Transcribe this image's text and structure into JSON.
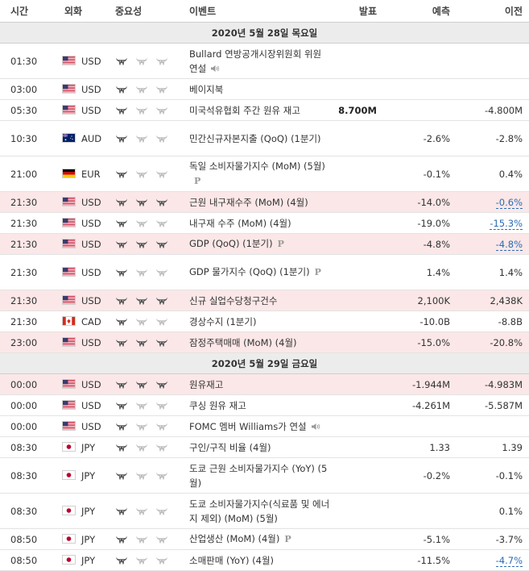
{
  "header": {
    "time": "시간",
    "currency": "외화",
    "importance": "중요성",
    "event": "이벤트",
    "actual": "발표",
    "forecast": "예측",
    "previous": "이전"
  },
  "dates": [
    "2020년 5월 28일 목요일",
    "2020년 5월 29일 금요일"
  ],
  "rows": [
    {
      "time": "01:30",
      "flag": "us",
      "currency": "USD",
      "importance": 1,
      "event": "Bullard 연방공개시장위원회 위원 연설",
      "speech": true,
      "tall": true,
      "highlight": false,
      "actual": "",
      "forecast": "",
      "previous": ""
    },
    {
      "time": "03:00",
      "flag": "us",
      "currency": "USD",
      "importance": 1,
      "event": "베이지북",
      "highlight": false,
      "actual": "",
      "forecast": "",
      "previous": ""
    },
    {
      "time": "05:30",
      "flag": "us",
      "currency": "USD",
      "importance": 1,
      "event": "미국석유협회 주간 원유 재고",
      "highlight": false,
      "actual": "8.700M",
      "forecast": "",
      "previous": "-4.800M"
    },
    {
      "time": "10:30",
      "flag": "au",
      "currency": "AUD",
      "importance": 1,
      "event": "민간신규자본지출 (QoQ) (1분기)",
      "tall": true,
      "highlight": false,
      "actual": "",
      "forecast": "-2.6%",
      "previous": "-2.8%"
    },
    {
      "time": "21:00",
      "flag": "de",
      "currency": "EUR",
      "importance": 1,
      "event": "독일 소비자물가지수 (MoM) (5월)",
      "pmark": true,
      "tall": true,
      "highlight": false,
      "actual": "",
      "forecast": "-0.1%",
      "previous": "0.4%"
    },
    {
      "time": "21:30",
      "flag": "us",
      "currency": "USD",
      "importance": 3,
      "event": "근원 내구재수주 (MoM) (4월)",
      "highlight": true,
      "actual": "",
      "forecast": "-14.0%",
      "previous": "-0.6%",
      "revised": true
    },
    {
      "time": "21:30",
      "flag": "us",
      "currency": "USD",
      "importance": 1,
      "event": "내구재 수주 (MoM) (4월)",
      "highlight": false,
      "actual": "",
      "forecast": "-19.0%",
      "previous": "-15.3%",
      "revised": true
    },
    {
      "time": "21:30",
      "flag": "us",
      "currency": "USD",
      "importance": 3,
      "event": "GDP (QoQ) (1분기)",
      "pmark": true,
      "highlight": true,
      "actual": "",
      "forecast": "-4.8%",
      "previous": "-4.8%",
      "revised": true
    },
    {
      "time": "21:30",
      "flag": "us",
      "currency": "USD",
      "importance": 1,
      "event": "GDP 물가지수 (QoQ) (1분기)",
      "pmark": true,
      "tall": true,
      "highlight": false,
      "actual": "",
      "forecast": "1.4%",
      "previous": "1.4%"
    },
    {
      "time": "21:30",
      "flag": "us",
      "currency": "USD",
      "importance": 3,
      "event": "신규 실업수당청구건수",
      "highlight": true,
      "actual": "",
      "forecast": "2,100K",
      "previous": "2,438K"
    },
    {
      "time": "21:30",
      "flag": "ca",
      "currency": "CAD",
      "importance": 1,
      "event": "경상수지 (1분기)",
      "highlight": false,
      "actual": "",
      "forecast": "-10.0B",
      "previous": "-8.8B"
    },
    {
      "time": "23:00",
      "flag": "us",
      "currency": "USD",
      "importance": 3,
      "event": "잠정주택매매 (MoM) (4월)",
      "highlight": true,
      "actual": "",
      "forecast": "-15.0%",
      "previous": "-20.8%"
    },
    {
      "time": "00:00",
      "flag": "us",
      "currency": "USD",
      "importance": 3,
      "event": "원유재고",
      "highlight": true,
      "actual": "",
      "forecast": "-1.944M",
      "previous": "-4.983M"
    },
    {
      "time": "00:00",
      "flag": "us",
      "currency": "USD",
      "importance": 1,
      "event": "쿠싱 원유 재고",
      "highlight": false,
      "actual": "",
      "forecast": "-4.261M",
      "previous": "-5.587M"
    },
    {
      "time": "00:00",
      "flag": "us",
      "currency": "USD",
      "importance": 1,
      "event": "FOMC 멤버 Williams가 연설",
      "speech": true,
      "highlight": false,
      "actual": "",
      "forecast": "",
      "previous": ""
    },
    {
      "time": "08:30",
      "flag": "jp",
      "currency": "JPY",
      "importance": 1,
      "event": "구인/구직 비율 (4월)",
      "highlight": false,
      "actual": "",
      "forecast": "1.33",
      "previous": "1.39"
    },
    {
      "time": "08:30",
      "flag": "jp",
      "currency": "JPY",
      "importance": 1,
      "event": "도쿄 근원 소비자물가지수 (YoY) (5월)",
      "tall": true,
      "highlight": false,
      "actual": "",
      "forecast": "-0.2%",
      "previous": "-0.1%"
    },
    {
      "time": "08:30",
      "flag": "jp",
      "currency": "JPY",
      "importance": 1,
      "event": "도쿄 소비자물가지수(식료품 및 에너지 제외) (MoM) (5월)",
      "tall": true,
      "highlight": false,
      "actual": "",
      "forecast": "",
      "previous": "0.1%"
    },
    {
      "time": "08:50",
      "flag": "jp",
      "currency": "JPY",
      "importance": 1,
      "event": "산업생산 (MoM) (4월)",
      "pmark": true,
      "highlight": false,
      "actual": "",
      "forecast": "-5.1%",
      "previous": "-3.7%"
    },
    {
      "time": "08:50",
      "flag": "jp",
      "currency": "JPY",
      "importance": 1,
      "event": "소매판매 (YoY) (4월)",
      "highlight": false,
      "actual": "",
      "forecast": "-11.5%",
      "previous": "-4.7%",
      "revised": true
    }
  ],
  "date_breaks": {
    "0": 0,
    "12": 1
  },
  "icons": {
    "importance": "bull-icon",
    "speech": "speaker-icon",
    "preliminary": "p-mark-icon",
    "flags": {
      "us": "us-flag-icon",
      "au": "au-flag-icon",
      "de": "de-flag-icon",
      "ca": "ca-flag-icon",
      "jp": "jp-flag-icon"
    }
  },
  "pmark_text": "P",
  "colors": {
    "highlight": "#fbe7e7",
    "bull_active": "#555555",
    "bull_inactive": "#bdbdbd",
    "revised": "#2a6db5",
    "date_row": "#ececec"
  }
}
